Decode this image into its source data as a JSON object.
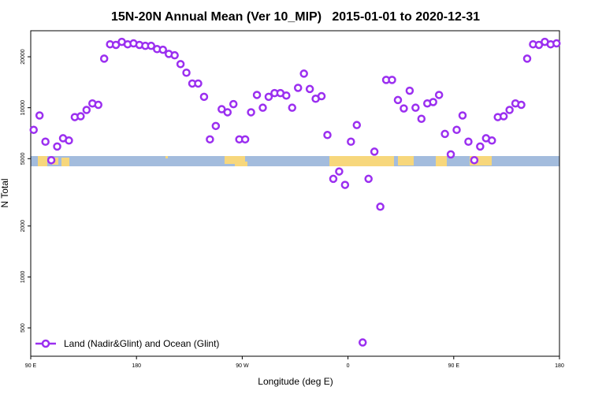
{
  "chart_data": {
    "type": "scatter",
    "title": "15N-20N Annual Mean (Ver 10_MIP)   2015-01-01 to 2020-12-31",
    "x_label": "Longitude (deg E)",
    "y_label": "N Total",
    "x": [
      92.5,
      97.5,
      102.5,
      107.5,
      112.5,
      117.5,
      122.5,
      127.5,
      132.5,
      137.5,
      142.5,
      147.5,
      152.5,
      157.5,
      162.5,
      167.5,
      172.5,
      177.5,
      182.5,
      187.5,
      192.5,
      197.5,
      202.5,
      207.5,
      212.5,
      217.5,
      222.5,
      227.5,
      232.5,
      237.5,
      242.5,
      247.5,
      252.5,
      257.5,
      262.5,
      267.5,
      272.5,
      277.5,
      282.5,
      287.5,
      292.5,
      297.5,
      302.5,
      307.5,
      312.5,
      317.5,
      322.5,
      327.5,
      332.5,
      337.5,
      342.5,
      347.5,
      352.5,
      357.5,
      362.5,
      367.5,
      372.5,
      377.5,
      382.5,
      387.5,
      392.5,
      397.5,
      402.5,
      407.5,
      412.5,
      417.5,
      422.5,
      427.5,
      432.5,
      437.5,
      442.5,
      447.5,
      452.5,
      457.5,
      462.5,
      467.5,
      472.5,
      477.5,
      482.5,
      487.5,
      492.5,
      497.5,
      502.5,
      507.5,
      512.5,
      517.5,
      522.5,
      527.5,
      532.5,
      537.5
    ],
    "series": [
      {
        "name": "Land (Nadir&Glint) and Ocean (Glint)",
        "color": "#9b2ff0",
        "values": [
          7400,
          9000,
          6300,
          4900,
          5900,
          6600,
          6400,
          8800,
          8900,
          9700,
          10600,
          10400,
          19500,
          23700,
          23500,
          24500,
          23700,
          24000,
          23500,
          23200,
          23200,
          22200,
          22000,
          20800,
          20400,
          18100,
          16100,
          13900,
          13900,
          11600,
          6500,
          7800,
          9800,
          9400,
          10500,
          6500,
          6500,
          9400,
          11900,
          10000,
          11600,
          12200,
          12200,
          11800,
          10000,
          13100,
          15900,
          12900,
          11300,
          11700,
          6900,
          3800,
          4200,
          3500,
          6300,
          7900,
          410,
          3800,
          5500,
          2600,
          14600,
          14600,
          11100,
          9900,
          12600,
          10000,
          8600,
          10600,
          10800,
          11900,
          7000,
          5300,
          7400,
          9000,
          6300,
          4900,
          5900,
          6600,
          6400,
          8800,
          8900,
          9700,
          10600,
          10400,
          19500,
          23700,
          23500,
          24500,
          23700,
          24000
        ]
      }
    ],
    "xlim": [
      90,
      540
    ],
    "xticks": [
      {
        "value": 90,
        "label": "90 E"
      },
      {
        "value": 180,
        "label": "180"
      },
      {
        "value": 270,
        "label": "90 W"
      },
      {
        "value": 360,
        "label": "0"
      },
      {
        "value": 450,
        "label": "90 E"
      },
      {
        "value": 540,
        "label": "180"
      }
    ],
    "ylim": [
      340,
      28500
    ],
    "yticks": [
      500,
      1000,
      2000,
      5000,
      10000,
      20000
    ],
    "ylog": true,
    "legend": "bottom-left"
  }
}
